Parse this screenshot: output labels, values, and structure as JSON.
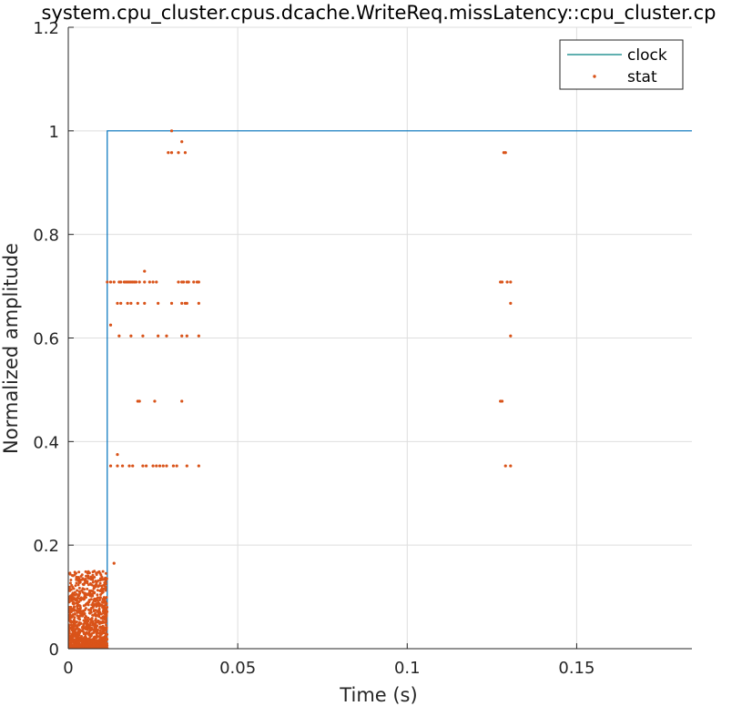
{
  "chart_data": {
    "type": "line",
    "title": "system.cpu_cluster.cpus.dcache.WriteReq.missLatency::cpu_cluster.cp",
    "xlabel": "Time (s)",
    "ylabel": "Normalized amplitude",
    "xlim": [
      0,
      0.184
    ],
    "ylim": [
      0,
      1.2
    ],
    "xticks": [
      0,
      0.05,
      0.1,
      0.15
    ],
    "xtick_labels": [
      "0",
      "0.05",
      "0.1",
      "0.15"
    ],
    "yticks": [
      0,
      0.2,
      0.4,
      0.6,
      0.8,
      1.0,
      1.2
    ],
    "ytick_labels": [
      "0",
      "0.2",
      "0.4",
      "0.6",
      "0.8",
      "1",
      "1.2"
    ],
    "grid": true,
    "legend_position": "top-right",
    "series": [
      {
        "name": "clock",
        "kind": "step-line",
        "color": "#0072BD",
        "legend_color": "#008080",
        "x": [
          0,
          0.0115,
          0.0115,
          0.184
        ],
        "y": [
          0,
          0,
          1,
          1
        ]
      },
      {
        "name": "stat",
        "kind": "points",
        "color": "#D95319",
        "points": [
          [
            0.0125,
            0.625
          ],
          [
            0.0135,
            0.165
          ],
          [
            0.0145,
            0.375
          ],
          [
            0.0125,
            0.353
          ],
          [
            0.0145,
            0.353
          ],
          [
            0.016,
            0.353
          ],
          [
            0.018,
            0.353
          ],
          [
            0.019,
            0.353
          ],
          [
            0.022,
            0.353
          ],
          [
            0.023,
            0.353
          ],
          [
            0.025,
            0.353
          ],
          [
            0.026,
            0.353
          ],
          [
            0.027,
            0.353
          ],
          [
            0.028,
            0.353
          ],
          [
            0.029,
            0.353
          ],
          [
            0.031,
            0.353
          ],
          [
            0.032,
            0.353
          ],
          [
            0.035,
            0.353
          ],
          [
            0.0385,
            0.353
          ],
          [
            0.0205,
            0.478
          ],
          [
            0.021,
            0.478
          ],
          [
            0.0255,
            0.478
          ],
          [
            0.0335,
            0.478
          ],
          [
            0.015,
            0.604
          ],
          [
            0.0185,
            0.604
          ],
          [
            0.022,
            0.604
          ],
          [
            0.0265,
            0.604
          ],
          [
            0.029,
            0.604
          ],
          [
            0.0335,
            0.604
          ],
          [
            0.035,
            0.604
          ],
          [
            0.0385,
            0.604
          ],
          [
            0.0145,
            0.667
          ],
          [
            0.0155,
            0.667
          ],
          [
            0.0175,
            0.667
          ],
          [
            0.0185,
            0.667
          ],
          [
            0.0205,
            0.667
          ],
          [
            0.0225,
            0.667
          ],
          [
            0.0265,
            0.667
          ],
          [
            0.0305,
            0.667
          ],
          [
            0.0335,
            0.667
          ],
          [
            0.0345,
            0.667
          ],
          [
            0.035,
            0.667
          ],
          [
            0.0385,
            0.667
          ],
          [
            0.0115,
            0.708
          ],
          [
            0.0125,
            0.708
          ],
          [
            0.0135,
            0.708
          ],
          [
            0.015,
            0.708
          ],
          [
            0.0155,
            0.708
          ],
          [
            0.0165,
            0.708
          ],
          [
            0.017,
            0.708
          ],
          [
            0.0175,
            0.708
          ],
          [
            0.018,
            0.708
          ],
          [
            0.0185,
            0.708
          ],
          [
            0.019,
            0.708
          ],
          [
            0.0195,
            0.708
          ],
          [
            0.02,
            0.708
          ],
          [
            0.021,
            0.708
          ],
          [
            0.0225,
            0.708
          ],
          [
            0.024,
            0.708
          ],
          [
            0.025,
            0.708
          ],
          [
            0.026,
            0.708
          ],
          [
            0.0325,
            0.708
          ],
          [
            0.0335,
            0.708
          ],
          [
            0.034,
            0.708
          ],
          [
            0.035,
            0.708
          ],
          [
            0.0355,
            0.708
          ],
          [
            0.037,
            0.708
          ],
          [
            0.038,
            0.708
          ],
          [
            0.0385,
            0.708
          ],
          [
            0.0225,
            0.729
          ],
          [
            0.0295,
            0.958
          ],
          [
            0.0305,
            0.958
          ],
          [
            0.0325,
            0.958
          ],
          [
            0.0345,
            0.958
          ],
          [
            0.0335,
            0.979
          ],
          [
            0.0305,
            1.0
          ],
          [
            0.1275,
            0.708
          ],
          [
            0.128,
            0.708
          ],
          [
            0.1295,
            0.708
          ],
          [
            0.1305,
            0.708
          ],
          [
            0.1275,
            0.478
          ],
          [
            0.128,
            0.478
          ],
          [
            0.1285,
            0.958
          ],
          [
            0.129,
            0.958
          ],
          [
            0.129,
            0.353
          ],
          [
            0.1305,
            0.353
          ],
          [
            0.1305,
            0.667
          ],
          [
            0.1305,
            0.604
          ]
        ],
        "dense_cluster": {
          "x_range": [
            0,
            0.0115
          ],
          "y_range": [
            0,
            0.15
          ],
          "approx_count": 1400
        }
      }
    ]
  }
}
